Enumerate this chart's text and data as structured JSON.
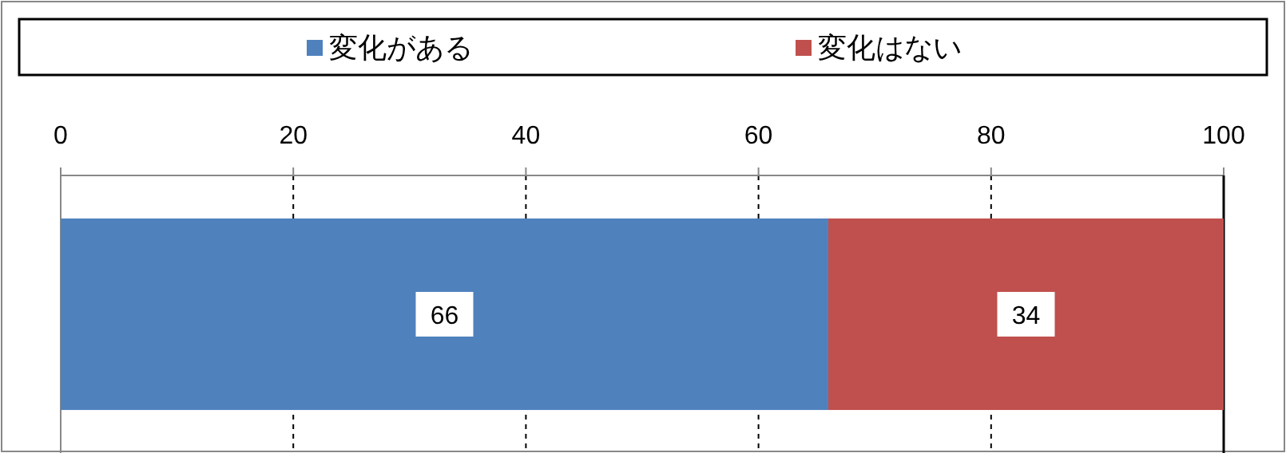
{
  "chart_data": {
    "type": "bar",
    "orientation": "horizontal",
    "stacked": true,
    "categories": [
      null
    ],
    "series": [
      {
        "name": "変化がある",
        "color": "#4f81bd",
        "values": [
          66
        ]
      },
      {
        "name": "変化はない",
        "color": "#c0504d",
        "values": [
          34
        ]
      }
    ],
    "xlim": [
      0,
      100
    ],
    "xticks": [
      0,
      20,
      40,
      60,
      80,
      100
    ],
    "grid": "x",
    "legend": "top",
    "data_labels": true
  }
}
